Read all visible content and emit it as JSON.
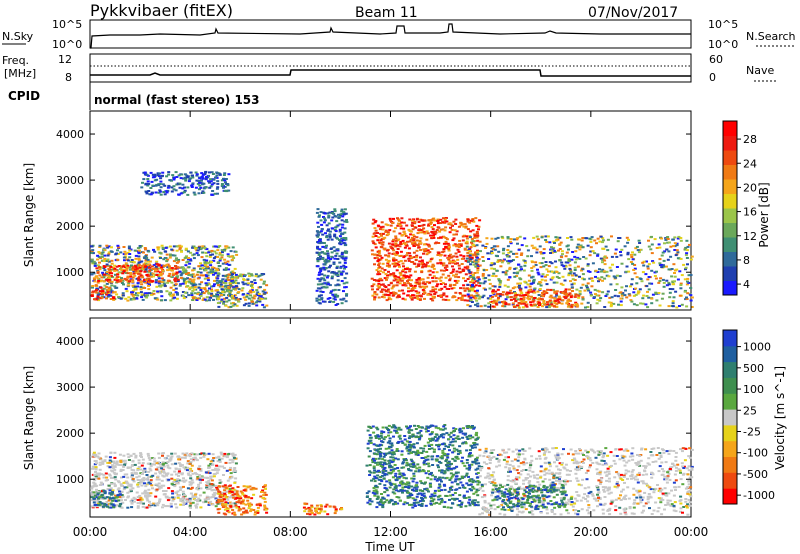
{
  "header": {
    "station": "Pykkvibaer (fitEX)",
    "beam": "Beam 11",
    "date": "07/Nov/2017"
  },
  "status_panels": {
    "nsky_label": "N.Sky",
    "nsky_ticks": [
      "10^5",
      "10^0"
    ],
    "nsearch_label": "N.Search",
    "nsearch_ticks": [
      "10^5",
      "10^0"
    ],
    "freq_label_1": "Freq.",
    "freq_label_2": "[MHz]",
    "freq_ticks": [
      "12",
      "8"
    ],
    "nave_label": "Nave",
    "nave_ticks": [
      "60",
      "0"
    ],
    "cpid_label": "CPID",
    "cpid_text": "normal (fast stereo) 153"
  },
  "colors": {
    "power_scale": [
      "#1a1aff",
      "#1f3fb0",
      "#2f6a9a",
      "#3f8f73",
      "#6aa85a",
      "#9bc54a",
      "#e6d21a",
      "#f5a51a",
      "#f07a14",
      "#ee4a10",
      "#ee1a10",
      "#ff0000"
    ],
    "velocity_scale": [
      "#1f3fd0",
      "#1f5fa0",
      "#2f7f6f",
      "#3f8f4f",
      "#5aa83f",
      "#c8c8c8",
      "#e6d21a",
      "#f5a51a",
      "#f07a14",
      "#ee4a10",
      "#ff0000"
    ]
  },
  "chart_data": [
    {
      "type": "heatmap",
      "title": "",
      "xlabel": "",
      "ylabel": "Slant Range [km]",
      "x_ticks": [
        "00:00",
        "04:00",
        "08:00",
        "12:00",
        "16:00",
        "20:00",
        "00:00"
      ],
      "y_ticks": [
        "4000",
        "3000",
        "2000",
        "1000"
      ],
      "xlim_hours": [
        0,
        24
      ],
      "ylim_km": [
        180,
        4500
      ],
      "colorbar": {
        "label": "Power [dB]",
        "ticks": [
          "28",
          "24",
          "20",
          "16",
          "12",
          "8",
          "4"
        ],
        "range": [
          0,
          30
        ]
      },
      "echo_regions": [
        {
          "t": [
            0.0,
            5.8
          ],
          "r": [
            400,
            1600
          ],
          "level": "mixed",
          "note_value_db": 14
        },
        {
          "t": [
            0.2,
            3.5
          ],
          "r": [
            800,
            1200
          ],
          "level": "high",
          "note_value_db": 22
        },
        {
          "t": [
            0.0,
            1.0
          ],
          "r": [
            420,
            700
          ],
          "level": "high",
          "note_value_db": 26
        },
        {
          "t": [
            2.0,
            5.5
          ],
          "r": [
            2700,
            3200
          ],
          "level": "low",
          "note_value_db": 6
        },
        {
          "t": [
            5.0,
            7.0
          ],
          "r": [
            250,
            1000
          ],
          "level": "mixed",
          "note_value_db": 14
        },
        {
          "t": [
            9.0,
            10.2
          ],
          "r": [
            300,
            2400
          ],
          "level": "low",
          "note_value_db": 8
        },
        {
          "t": [
            11.2,
            15.5
          ],
          "r": [
            400,
            2200
          ],
          "level": "high",
          "note_value_db": 24
        },
        {
          "t": [
            15.0,
            24.0
          ],
          "r": [
            250,
            1800
          ],
          "level": "mixed",
          "note_value_db": 14
        },
        {
          "t": [
            16.0,
            19.5
          ],
          "r": [
            250,
            650
          ],
          "level": "high",
          "note_value_db": 28
        }
      ]
    },
    {
      "type": "heatmap",
      "title": "",
      "xlabel": "Time UT",
      "ylabel": "Slant Range [km]",
      "x_ticks": [
        "00:00",
        "04:00",
        "08:00",
        "12:00",
        "16:00",
        "20:00",
        "00:00"
      ],
      "y_ticks": [
        "4000",
        "3000",
        "2000",
        "1000"
      ],
      "xlim_hours": [
        0,
        24
      ],
      "ylim_km": [
        180,
        4500
      ],
      "colorbar": {
        "label": "Velocity [m s^-1]",
        "ticks": [
          "1000",
          "500",
          "100",
          "25",
          "-25",
          "-100",
          "-500",
          "-1000"
        ],
        "range": [
          -1000,
          1000
        ]
      },
      "echo_regions": [
        {
          "t": [
            0.0,
            5.8
          ],
          "r": [
            400,
            1600
          ],
          "level": "ground",
          "note_value_ms": 0
        },
        {
          "t": [
            0.0,
            1.2
          ],
          "r": [
            400,
            800
          ],
          "level": "positive",
          "note_value_ms": 150
        },
        {
          "t": [
            5.0,
            7.0
          ],
          "r": [
            250,
            900
          ],
          "level": "negative",
          "note_value_ms": -200
        },
        {
          "t": [
            8.5,
            10.0
          ],
          "r": [
            250,
            500
          ],
          "level": "negative",
          "note_value_ms": -200
        },
        {
          "t": [
            11.0,
            15.5
          ],
          "r": [
            400,
            2200
          ],
          "level": "positive",
          "note_value_ms": 150
        },
        {
          "t": [
            15.5,
            24.0
          ],
          "r": [
            250,
            1700
          ],
          "level": "ground",
          "note_value_ms": 0
        },
        {
          "t": [
            16.0,
            19.0
          ],
          "r": [
            400,
            900
          ],
          "level": "positive",
          "note_value_ms": 400
        }
      ]
    }
  ]
}
